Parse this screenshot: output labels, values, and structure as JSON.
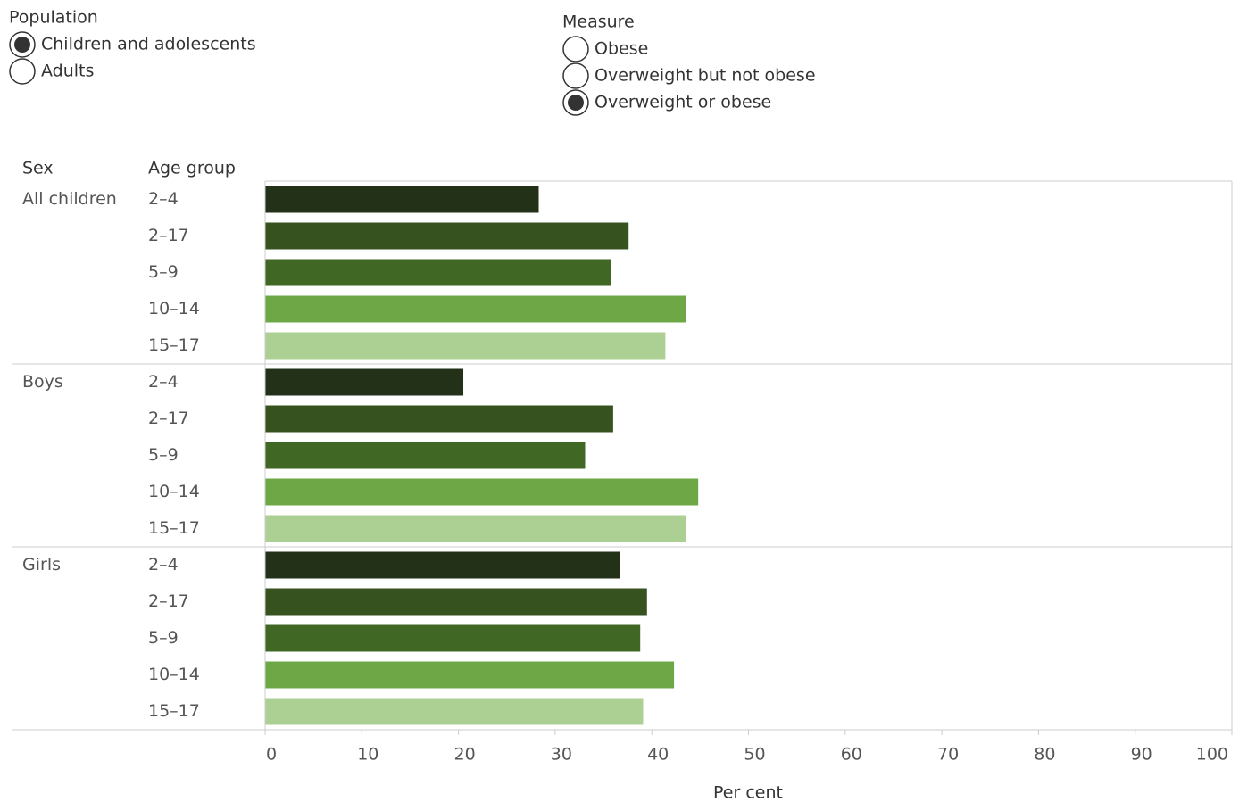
{
  "controls": {
    "population": {
      "title": "Population",
      "options": [
        "Children and adolescents",
        "Adults"
      ],
      "selected": 0
    },
    "measure": {
      "title": "Measure",
      "options": [
        "Obese",
        "Overweight but not obese",
        "Overweight or obese"
      ],
      "selected": 2
    }
  },
  "chart_data": {
    "type": "bar",
    "orientation": "horizontal",
    "group_header": "Sex",
    "category_header": "Age group",
    "x_label": "Per cent",
    "category_colors": [
      "#223118",
      "#36521f",
      "#416724",
      "#6ea846",
      "#acd093"
    ],
    "groups": [
      {
        "name": "All children",
        "categories": [
          "2–4",
          "2–17",
          "5–9",
          "10–14",
          "15–17"
        ],
        "values": [
          28.3,
          37.6,
          35.8,
          43.5,
          41.4
        ]
      },
      {
        "name": "Boys",
        "categories": [
          "2–4",
          "2–17",
          "5–9",
          "10–14",
          "15–17"
        ],
        "values": [
          20.5,
          36.0,
          33.1,
          44.8,
          43.5
        ]
      },
      {
        "name": "Girls",
        "categories": [
          "2–4",
          "2–17",
          "5–9",
          "10–14",
          "15–17"
        ],
        "values": [
          36.7,
          39.5,
          38.8,
          42.3,
          39.1
        ]
      }
    ],
    "xlim": [
      0,
      100
    ],
    "xticks": [
      0,
      10,
      20,
      30,
      40,
      50,
      60,
      70,
      80,
      90,
      100
    ],
    "grid": false
  }
}
